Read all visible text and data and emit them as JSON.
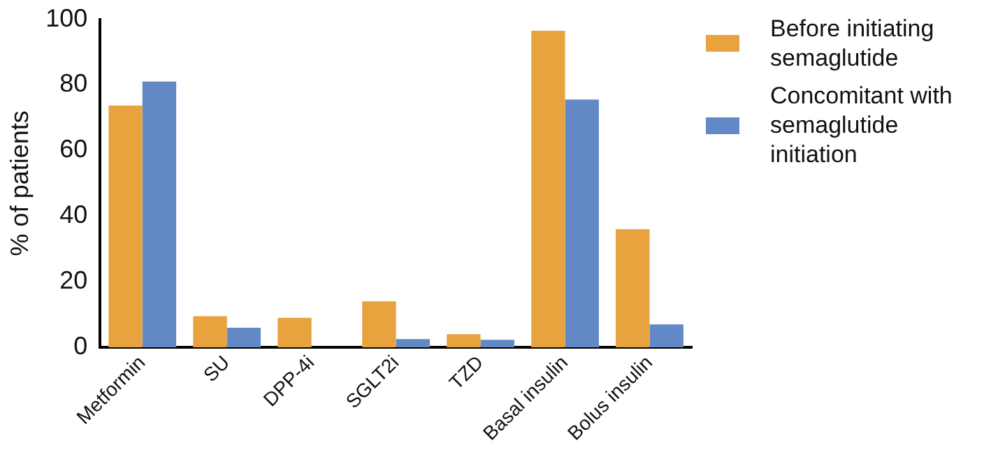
{
  "chart_data": {
    "type": "bar",
    "ylabel": "% of patients",
    "categories": [
      "Metformin",
      "SU",
      "DPP-4i",
      "SGLT2i",
      "TZD",
      "Basal insulin",
      "Bolus insulin"
    ],
    "series": [
      {
        "name": "Before initiating semaglutide",
        "color": "#e8a33e",
        "values": [
          73.7,
          9.5,
          9,
          14,
          4,
          96.5,
          36
        ]
      },
      {
        "name": "Concomitant with semaglutide initiation",
        "color": "#6289c6",
        "values": [
          81,
          6,
          0,
          2.5,
          2.3,
          75.5,
          7
        ]
      }
    ],
    "ylim": [
      0,
      100
    ],
    "yticks": [
      0,
      20,
      40,
      60,
      80,
      100
    ],
    "grid": false,
    "legend": "right"
  }
}
